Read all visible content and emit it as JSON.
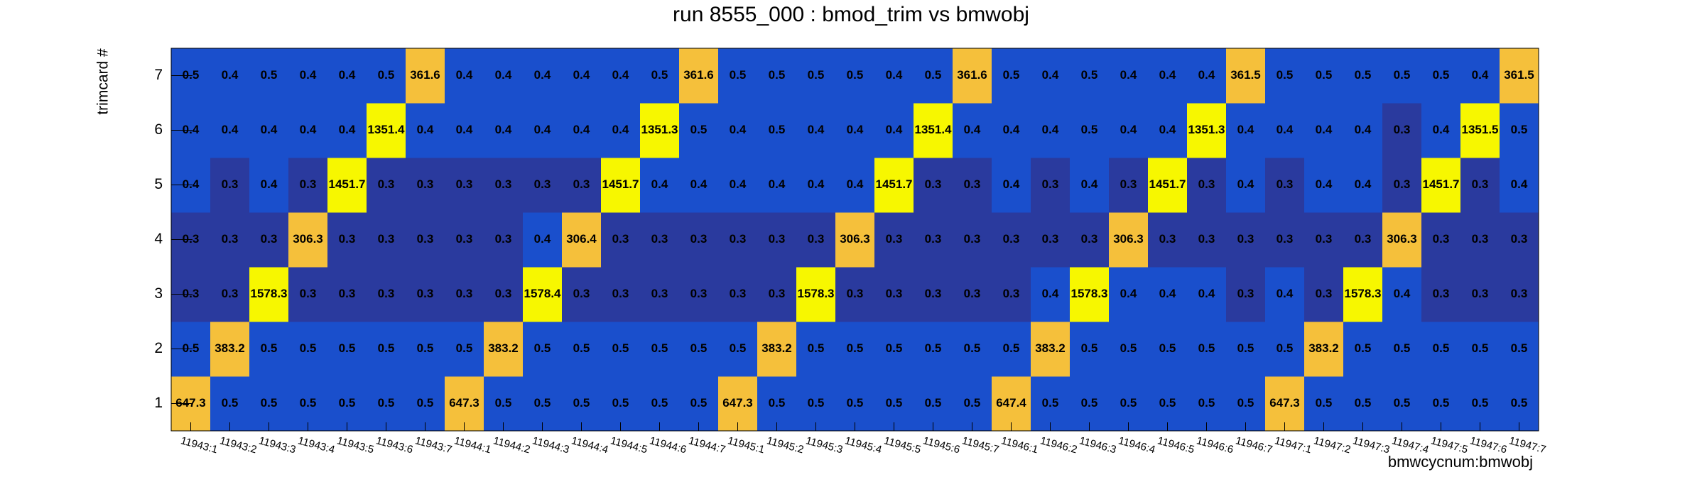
{
  "chart_data": {
    "type": "heatmap",
    "title": "run 8555_000 : bmod_trim vs bmwobj",
    "x_label": "bmwcycnum:bmwobj",
    "y_label": "trimcard #",
    "x_categories": [
      "11943:1",
      "11943:2",
      "11943:3",
      "11943:4",
      "11943:5",
      "11943:6",
      "11943:7",
      "11944:1",
      "11944:2",
      "11944:3",
      "11944:4",
      "11944:5",
      "11944:6",
      "11944:7",
      "11945:1",
      "11945:2",
      "11945:3",
      "11945:4",
      "11945:5",
      "11945:6",
      "11945:7",
      "11946:1",
      "11946:2",
      "11946:3",
      "11946:4",
      "11946:5",
      "11946:6",
      "11946:7",
      "11947:1",
      "11947:2",
      "11947:3",
      "11947:4",
      "11947:5",
      "11947:6",
      "11947:7"
    ],
    "y_categories": [
      1,
      2,
      3,
      4,
      5,
      6,
      7
    ],
    "values": [
      [
        647.3,
        0.5,
        0.5,
        0.5,
        0.5,
        0.5,
        0.5,
        647.3,
        0.5,
        0.5,
        0.5,
        0.5,
        0.5,
        0.5,
        647.3,
        0.5,
        0.5,
        0.5,
        0.5,
        0.5,
        0.5,
        647.4,
        0.5,
        0.5,
        0.5,
        0.5,
        0.5,
        0.5,
        647.3,
        0.5,
        0.5,
        0.5,
        0.5,
        0.5,
        0.5
      ],
      [
        0.5,
        383.2,
        0.5,
        0.5,
        0.5,
        0.5,
        0.5,
        0.5,
        383.2,
        0.5,
        0.5,
        0.5,
        0.5,
        0.5,
        0.5,
        383.2,
        0.5,
        0.5,
        0.5,
        0.5,
        0.5,
        0.5,
        383.2,
        0.5,
        0.5,
        0.5,
        0.5,
        0.5,
        0.5,
        383.2,
        0.5,
        0.5,
        0.5,
        0.5,
        0.5
      ],
      [
        0.3,
        0.3,
        1578.3,
        0.3,
        0.3,
        0.3,
        0.3,
        0.3,
        0.3,
        1578.4,
        0.3,
        0.3,
        0.3,
        0.3,
        0.3,
        0.3,
        1578.3,
        0.3,
        0.3,
        0.3,
        0.3,
        0.3,
        0.4,
        1578.3,
        0.4,
        0.4,
        0.4,
        0.3,
        0.4,
        0.3,
        1578.3,
        0.4,
        0.3,
        0.3,
        0.3
      ],
      [
        0.3,
        0.3,
        0.3,
        306.3,
        0.3,
        0.3,
        0.3,
        0.3,
        0.3,
        0.4,
        306.4,
        0.3,
        0.3,
        0.3,
        0.3,
        0.3,
        0.3,
        306.3,
        0.3,
        0.3,
        0.3,
        0.3,
        0.3,
        0.3,
        306.3,
        0.3,
        0.3,
        0.3,
        0.3,
        0.3,
        0.3,
        306.3,
        0.3,
        0.3,
        0.3
      ],
      [
        0.4,
        0.3,
        0.4,
        0.3,
        1451.7,
        0.3,
        0.3,
        0.3,
        0.3,
        0.3,
        0.3,
        1451.7,
        0.4,
        0.4,
        0.4,
        0.4,
        0.4,
        0.4,
        1451.7,
        0.3,
        0.3,
        0.4,
        0.3,
        0.4,
        0.3,
        1451.7,
        0.3,
        0.4,
        0.3,
        0.4,
        0.4,
        0.3,
        1451.7,
        0.3,
        0.4
      ],
      [
        0.4,
        0.4,
        0.4,
        0.4,
        0.4,
        1351.4,
        0.4,
        0.4,
        0.4,
        0.4,
        0.4,
        0.4,
        1351.3,
        0.5,
        0.4,
        0.5,
        0.4,
        0.4,
        0.4,
        1351.4,
        0.4,
        0.4,
        0.4,
        0.5,
        0.4,
        0.4,
        1351.3,
        0.4,
        0.4,
        0.4,
        0.4,
        0.3,
        0.4,
        1351.5,
        0.5
      ],
      [
        0.5,
        0.4,
        0.5,
        0.4,
        0.4,
        0.5,
        361.6,
        0.4,
        0.4,
        0.4,
        0.4,
        0.4,
        0.5,
        361.6,
        0.5,
        0.5,
        0.5,
        0.5,
        0.4,
        0.5,
        361.6,
        0.5,
        0.4,
        0.5,
        0.4,
        0.4,
        0.4,
        361.5,
        0.5,
        0.5,
        0.5,
        0.5,
        0.5,
        0.4,
        361.5
      ]
    ],
    "palette": [
      {
        "from": 0,
        "color": "#2a3a9e"
      },
      {
        "from": 0.35,
        "color": "#1a4fcc"
      },
      {
        "from": 300,
        "color": "#f5c03b"
      },
      {
        "from": 1000,
        "color": "#f7f700"
      }
    ]
  }
}
